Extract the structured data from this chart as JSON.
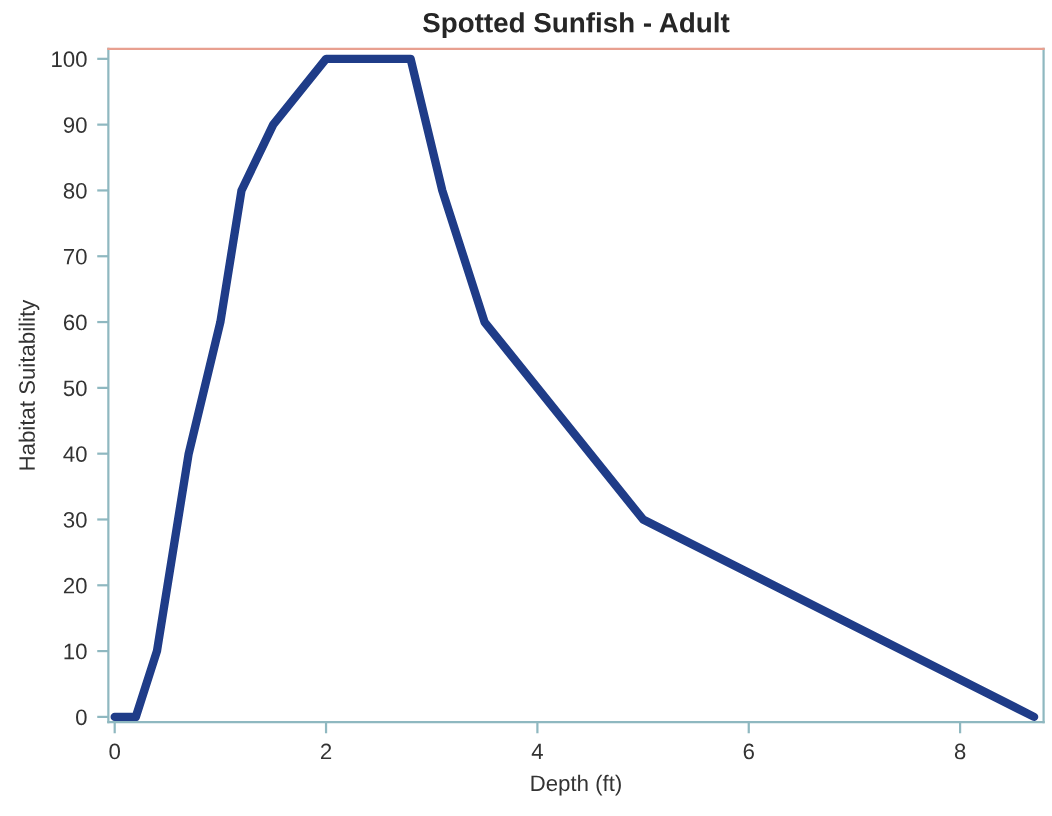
{
  "chart_data": {
    "type": "line",
    "title": "Spotted Sunfish - Adult",
    "xlabel": "Depth (ft)",
    "ylabel": "Habitat Suitability",
    "series": [
      {
        "color": "#1f3c88",
        "x": [
          0,
          0.2,
          0.4,
          0.7,
          1.0,
          1.2,
          1.5,
          2.0,
          2.8,
          3.1,
          3.5,
          5.0,
          8.7
        ],
        "values": [
          0,
          0,
          10,
          40,
          60,
          80,
          90,
          100,
          100,
          80,
          60,
          30,
          0
        ]
      }
    ],
    "xlim": [
      -0.06,
      8.79
    ],
    "ylim": [
      -0.8,
      101.5
    ],
    "xticks": [
      0,
      2,
      4,
      6,
      8
    ],
    "yticks": [
      0,
      10,
      20,
      30,
      40,
      50,
      60,
      70,
      80,
      90,
      100
    ],
    "grid": false,
    "marker": "none",
    "line_style": "solid"
  }
}
